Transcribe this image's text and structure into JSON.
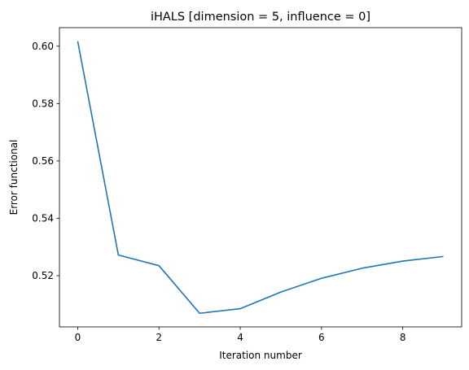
{
  "chart_data": {
    "type": "line",
    "title": "iHALS [dimension = 5, influence = 0]",
    "xlabel": "Iteration number",
    "ylabel": "Error functional",
    "grid": false,
    "legend": "none",
    "series": [
      {
        "color": "#1f77b4",
        "x": [
          0,
          1,
          2,
          3,
          4,
          5,
          6,
          7,
          8,
          9
        ],
        "y": [
          0.6017,
          0.5272,
          0.5235,
          0.5069,
          0.5085,
          0.5143,
          0.5191,
          0.5226,
          0.5251,
          0.5267
        ]
      }
    ],
    "xlim": [
      -0.45,
      9.45
    ],
    "ylim": [
      0.50215,
      0.60645
    ],
    "xticks": [
      0,
      2,
      4,
      6,
      8
    ],
    "xtick_labels": [
      "0",
      "2",
      "4",
      "6",
      "8"
    ],
    "yticks": [
      0.52,
      0.54,
      0.56,
      0.58,
      0.6
    ],
    "ytick_labels": [
      "0.52",
      "0.54",
      "0.56",
      "0.58",
      "0.60"
    ]
  }
}
